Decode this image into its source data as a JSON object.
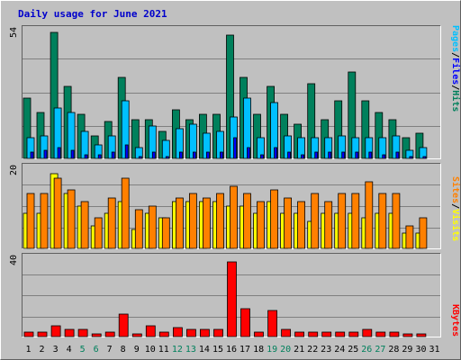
{
  "title": "Daily usage for June 2021",
  "colors": {
    "background": "#c0c0c0",
    "plot": "#c0c0c0",
    "grid": "#808080",
    "hits": "#00805c",
    "files": "#00c0ff",
    "pages": "#0000ff",
    "visits": "#ffff00",
    "sites": "#ff8000",
    "kbytes": "#ff0000",
    "weekend": "#00805c",
    "weekday": "#000000"
  },
  "right_labels": {
    "top": [
      "Pages",
      "/",
      "Files",
      "/",
      "Hits"
    ],
    "middle": [
      "Sites",
      "/",
      "Visits"
    ],
    "bottom": [
      "KBytes"
    ]
  },
  "chart_data": [
    {
      "type": "bar",
      "panel": "top",
      "ymax": 54,
      "ytick_label": "54",
      "grid": true,
      "x": [
        1,
        2,
        3,
        4,
        5,
        6,
        7,
        8,
        9,
        10,
        11,
        12,
        13,
        14,
        15,
        16,
        17,
        18,
        19,
        20,
        21,
        22,
        23,
        24,
        25,
        26,
        27,
        28,
        29,
        30,
        31
      ],
      "series": [
        {
          "name": "Hits",
          "values": [
            26,
            20,
            54,
            31,
            19,
            10,
            16,
            35,
            17,
            17,
            12,
            21,
            17,
            19,
            19,
            53,
            35,
            19,
            31,
            19,
            15,
            32,
            17,
            25,
            37,
            25,
            20,
            17,
            9,
            11,
            0
          ]
        },
        {
          "name": "Files",
          "values": [
            9,
            10,
            22,
            20,
            12,
            6,
            10,
            25,
            5,
            14,
            8,
            13,
            15,
            11,
            12,
            18,
            26,
            9,
            24,
            10,
            9,
            9,
            9,
            10,
            9,
            9,
            9,
            10,
            4,
            5,
            0
          ]
        },
        {
          "name": "Pages",
          "values": [
            3,
            4,
            5,
            4,
            2,
            2,
            3,
            6,
            1,
            3,
            1,
            3,
            3,
            3,
            3,
            9,
            5,
            2,
            5,
            3,
            2,
            3,
            3,
            3,
            3,
            3,
            2,
            3,
            1,
            1,
            0
          ]
        }
      ]
    },
    {
      "type": "bar",
      "panel": "middle",
      "ymax": 20,
      "ytick_label": "20",
      "grid": true,
      "x": [
        1,
        2,
        3,
        4,
        5,
        6,
        7,
        8,
        9,
        10,
        11,
        12,
        13,
        14,
        15,
        16,
        17,
        18,
        19,
        20,
        21,
        22,
        23,
        24,
        25,
        26,
        27,
        28,
        29,
        30,
        31
      ],
      "series": [
        {
          "name": "Visits",
          "values": [
            9,
            9,
            19,
            14,
            11,
            6,
            9,
            12,
            5,
            9,
            8,
            12,
            12,
            12,
            12,
            11,
            11,
            9,
            12,
            9,
            9,
            7,
            9,
            9,
            9,
            8,
            9,
            9,
            4,
            4,
            0
          ]
        },
        {
          "name": "Sites",
          "values": [
            14,
            14,
            18,
            15,
            12,
            8,
            13,
            18,
            10,
            11,
            8,
            13,
            14,
            13,
            14,
            16,
            14,
            12,
            15,
            13,
            12,
            14,
            12,
            14,
            14,
            17,
            14,
            14,
            6,
            8,
            0
          ]
        }
      ]
    },
    {
      "type": "bar",
      "panel": "bottom",
      "ymax": 40,
      "ytick_label": "40",
      "grid": true,
      "x": [
        1,
        2,
        3,
        4,
        5,
        6,
        7,
        8,
        9,
        10,
        11,
        12,
        13,
        14,
        15,
        16,
        17,
        18,
        19,
        20,
        21,
        22,
        23,
        24,
        25,
        26,
        27,
        28,
        29,
        30,
        31
      ],
      "series": [
        {
          "name": "KBytes",
          "values": [
            3,
            3,
            6,
            4,
            4,
            2,
            3,
            12,
            2,
            6,
            3,
            5,
            4,
            4,
            4,
            39,
            15,
            3,
            14,
            4,
            3,
            3,
            3,
            3,
            3,
            4,
            3,
            3,
            2,
            2,
            0
          ]
        }
      ]
    }
  ],
  "x_tick_labels": [
    "1",
    "2",
    "3",
    "4",
    "5",
    "6",
    "7",
    "8",
    "9",
    "10",
    "11",
    "12",
    "13",
    "14",
    "15",
    "16",
    "17",
    "18",
    "19",
    "20",
    "21",
    "22",
    "23",
    "24",
    "25",
    "26",
    "27",
    "28",
    "29",
    "30",
    "31"
  ],
  "weekend_days": [
    5,
    6,
    12,
    13,
    19,
    20,
    26,
    27
  ]
}
